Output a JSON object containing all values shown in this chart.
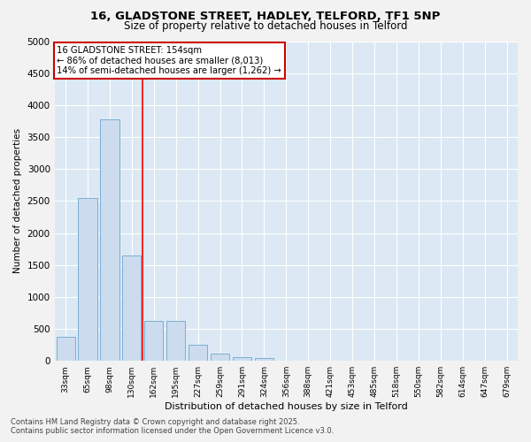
{
  "title_line1": "16, GLADSTONE STREET, HADLEY, TELFORD, TF1 5NP",
  "title_line2": "Size of property relative to detached houses in Telford",
  "xlabel": "Distribution of detached houses by size in Telford",
  "ylabel": "Number of detached properties",
  "categories": [
    "33sqm",
    "65sqm",
    "98sqm",
    "130sqm",
    "162sqm",
    "195sqm",
    "227sqm",
    "259sqm",
    "291sqm",
    "324sqm",
    "356sqm",
    "388sqm",
    "421sqm",
    "453sqm",
    "485sqm",
    "518sqm",
    "550sqm",
    "582sqm",
    "614sqm",
    "647sqm",
    "679sqm"
  ],
  "values": [
    380,
    2550,
    3780,
    1650,
    620,
    620,
    250,
    120,
    60,
    50,
    0,
    0,
    0,
    0,
    0,
    0,
    0,
    0,
    0,
    0,
    0
  ],
  "bar_color": "#ccdcee",
  "bar_edge_color": "#7aafd4",
  "plot_bg_color": "#dce9f5",
  "fig_bg_color": "#f2f2f2",
  "grid_color": "#ffffff",
  "ylim": [
    0,
    5000
  ],
  "yticks": [
    0,
    500,
    1000,
    1500,
    2000,
    2500,
    3000,
    3500,
    4000,
    4500,
    5000
  ],
  "redline_x": 3.5,
  "annotation_text": "16 GLADSTONE STREET: 154sqm\n← 86% of detached houses are smaller (8,013)\n14% of semi-detached houses are larger (1,262) →",
  "annotation_box_color": "#ffffff",
  "annotation_border_color": "#cc0000",
  "footer_line1": "Contains HM Land Registry data © Crown copyright and database right 2025.",
  "footer_line2": "Contains public sector information licensed under the Open Government Licence v3.0."
}
